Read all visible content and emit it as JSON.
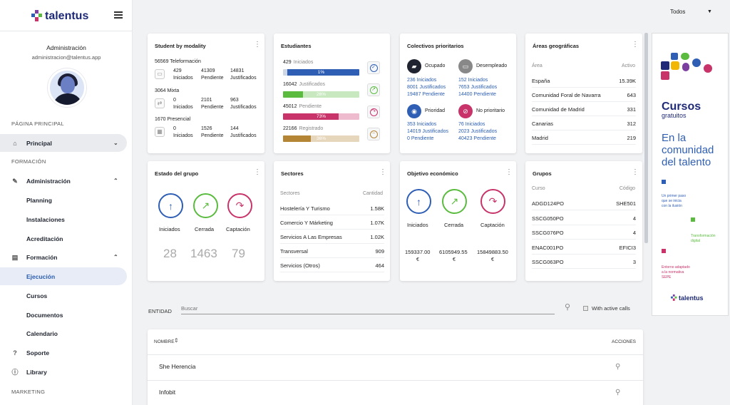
{
  "brand": {
    "name": "talentus"
  },
  "user": {
    "name": "Administración",
    "email": "administracion@talentus.app"
  },
  "sidebar": {
    "sections": [
      "PÁGINA PRINCIPAL",
      "FORMACIÓN",
      "MARKETING"
    ],
    "items": [
      {
        "label": "Principal",
        "icon": "home-icon"
      },
      {
        "label": "Administración",
        "icon": "admin-tools-icon"
      },
      {
        "label": "Planning"
      },
      {
        "label": "Instalaciones"
      },
      {
        "label": "Acreditación"
      },
      {
        "label": "Formación",
        "icon": "book-icon"
      },
      {
        "label": "Ejecución"
      },
      {
        "label": "Cursos"
      },
      {
        "label": "Documentos"
      },
      {
        "label": "Calendario"
      },
      {
        "label": "Soporte",
        "icon": "help-icon"
      },
      {
        "label": "Library",
        "icon": "info-icon"
      }
    ]
  },
  "top_filter": {
    "value": "Todos"
  },
  "modality": {
    "title": "Student by modality",
    "groups": [
      {
        "header": "56569 Teleformación",
        "vals": [
          "429",
          "41309",
          "14831"
        ],
        "labels": [
          "Iniciados",
          "Pendiente",
          "Justificados"
        ]
      },
      {
        "header": "3064 Mixta",
        "vals": [
          "0",
          "2101",
          "963"
        ],
        "labels": [
          "Iniciados",
          "Pendiente",
          "Justificados"
        ]
      },
      {
        "header": "1670 Presencial",
        "vals": [
          "0",
          "1526",
          "144"
        ],
        "labels": [
          "Iniciados",
          "Pendiente",
          "Justificados"
        ]
      }
    ]
  },
  "estudiantes": {
    "title": "Estudiantes",
    "rows": [
      {
        "count": "429",
        "label": "Iniciados",
        "pct": "1%",
        "fraction": 0.01,
        "color": "#2f5fb5"
      },
      {
        "count": "16042",
        "label": "Justificados",
        "pct": "26%",
        "fraction": 0.26,
        "color": "#5bbb3f"
      },
      {
        "count": "45012",
        "label": "Pendiente",
        "pct": "73%",
        "fraction": 0.73,
        "color": "#c8336a"
      },
      {
        "count": "22166",
        "label": "Registrado",
        "pct": "36%",
        "fraction": 0.36,
        "color": "#b38534"
      }
    ]
  },
  "colectivos": {
    "title": "Colectivos prioritarios",
    "blocks": [
      {
        "name": "Ocupado",
        "lines": [
          "236 Iniciados",
          "8001 Justificados",
          "19487 Pendiente"
        ]
      },
      {
        "name": "Desempleado",
        "lines": [
          "152 Iniciados",
          "7653 Justificados",
          "14400 Pendiente"
        ]
      },
      {
        "name": "Prioridad",
        "lines": [
          "353 Iniciados",
          "14019 Justificados",
          "0 Pendiente"
        ]
      },
      {
        "name": "No prioritario",
        "lines": [
          "76 Iniciados",
          "2023 Justificados",
          "40423 Pendiente"
        ]
      }
    ]
  },
  "areas": {
    "title": "Áreas geográficas",
    "head": [
      "Área",
      "Activo"
    ],
    "rows": [
      [
        "España",
        "15.39K"
      ],
      [
        "Comunidad Foral de Navarra",
        "643"
      ],
      [
        "Comunidad de Madrid",
        "331"
      ],
      [
        "Canarias",
        "312"
      ],
      [
        "Madrid",
        "219"
      ]
    ]
  },
  "estado": {
    "title": "Estado del grupo",
    "items": [
      {
        "label": "Iniciados",
        "value": "28",
        "color": "#2f5fb5"
      },
      {
        "label": "Cerrada",
        "value": "1463",
        "color": "#5bbb3f"
      },
      {
        "label": "Captación",
        "value": "79",
        "color": "#c8336a"
      }
    ]
  },
  "sectores": {
    "title": "Sectores",
    "head": [
      "Sectores",
      "Cantidad"
    ],
    "rows": [
      [
        "Hostelería Y Turismo",
        "1.58K"
      ],
      [
        "Comercio Y Márketing",
        "1.07K"
      ],
      [
        "Servicios A Las Empresas",
        "1.02K"
      ],
      [
        "Transversal",
        "909"
      ],
      [
        "Servicios (Otros)",
        "464"
      ]
    ]
  },
  "objetivo": {
    "title": "Objetivo económico",
    "items": [
      {
        "label": "Iniciados",
        "value": "159337.00",
        "cur": "€",
        "color": "#2f5fb5"
      },
      {
        "label": "Cerrada",
        "value": "6105949.55",
        "cur": "€",
        "color": "#5bbb3f"
      },
      {
        "label": "Captación",
        "value": "15849883.50",
        "cur": "€",
        "color": "#c8336a"
      }
    ]
  },
  "grupos": {
    "title": "Grupos",
    "head": [
      "Curso",
      "Código"
    ],
    "rows": [
      [
        "ADGD124PO",
        "SHE501"
      ],
      [
        "SSCG050PO",
        "4"
      ],
      [
        "SSCG076PO",
        "4"
      ],
      [
        "ENAC001PO",
        "EFICI3"
      ],
      [
        "SSCG063PO",
        "3"
      ]
    ]
  },
  "entidad": {
    "label": "ENTIDAD",
    "placeholder": "Buscar",
    "check_label": "With active calls"
  },
  "table": {
    "col_name": "NOMBRE",
    "col_actions": "ACCIONES",
    "rows": [
      "She Herencia",
      "Infobit"
    ]
  },
  "banner": {
    "title": "Cursos",
    "sub": "gratuitos",
    "lines": [
      "En la",
      "comunidad",
      "del talento"
    ],
    "note1a": "Un primer paso",
    "note1b": "que se inicia",
    "note1c": "con la ilusión",
    "note2a": "Transformación",
    "note2b": "digital",
    "note3a": "Entorno adaptado",
    "note3b": "a la normativa",
    "note3c": "SEPE",
    "brand": "talentus"
  }
}
